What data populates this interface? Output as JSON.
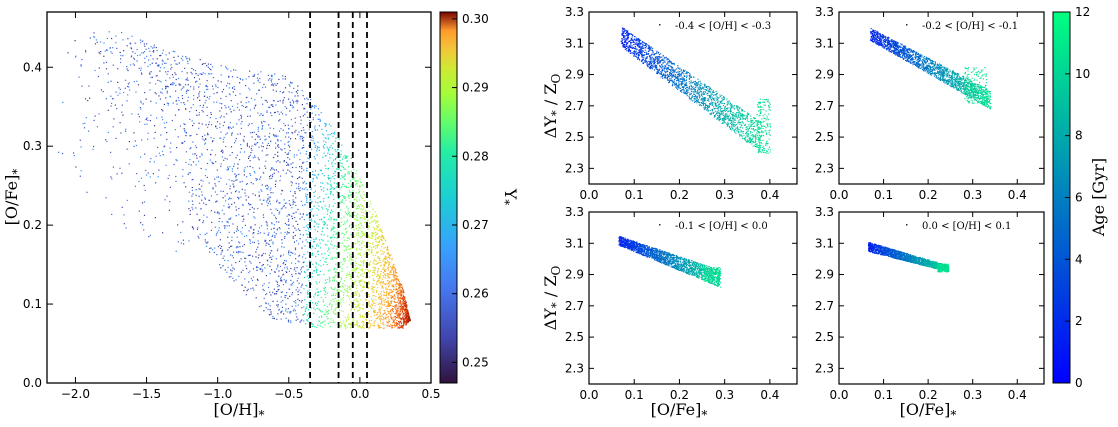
{
  "chart_data": [
    {
      "type": "scatter",
      "panel": "left",
      "xlabel": "[O/H]₁",
      "xlabel_text": "[O/H]",
      "xlabel_sub": "*",
      "ylabel_text": "[O/Fe]",
      "ylabel_sub": "*",
      "xlim": [
        -2.2,
        0.5
      ],
      "ylim": [
        0.0,
        0.47
      ],
      "xticks": [
        -2.0,
        -1.5,
        -1.0,
        -0.5,
        0.0,
        0.5
      ],
      "xtick_labels": [
        "−2.0",
        "−1.5",
        "−1.0",
        "−0.5",
        "0.0",
        "0.5"
      ],
      "yticks": [
        0.0,
        0.1,
        0.2,
        0.3,
        0.4
      ],
      "ytick_labels": [
        "0.0",
        "0.1",
        "0.2",
        "0.3",
        "0.4"
      ],
      "vlines": [
        -0.35,
        -0.15,
        -0.05,
        0.05
      ],
      "colorbar": {
        "label_text": "Y",
        "label_sub": "*",
        "range": [
          0.247,
          0.301
        ],
        "ticks": [
          0.25,
          0.26,
          0.27,
          0.28,
          0.29,
          0.3
        ],
        "tick_labels": [
          "0.25",
          "0.26",
          "0.27",
          "0.28",
          "0.29",
          "0.30"
        ],
        "colormap": "turbo"
      },
      "envelope": {
        "upper": [
          [
            -2.15,
            0.45
          ],
          [
            -1.75,
            0.45
          ],
          [
            -1.3,
            0.42
          ],
          [
            -0.9,
            0.4
          ],
          [
            -0.5,
            0.39
          ],
          [
            -0.3,
            0.35
          ],
          [
            -0.1,
            0.3
          ],
          [
            0.1,
            0.22
          ],
          [
            0.3,
            0.12
          ],
          [
            0.35,
            0.08
          ]
        ],
        "lower": [
          [
            -1.2,
            0.2
          ],
          [
            -1.0,
            0.15
          ],
          [
            -0.8,
            0.11
          ],
          [
            -0.6,
            0.08
          ],
          [
            -0.3,
            0.07
          ],
          [
            0.3,
            0.07
          ],
          [
            0.35,
            0.08
          ]
        ]
      }
    },
    {
      "type": "scatter",
      "panel": "top-left",
      "legend": "-0.4 < [O/H] < -0.3",
      "xlim": [
        0.0,
        0.46
      ],
      "ylim": [
        2.2,
        3.3
      ],
      "band": {
        "x": [
          0.07,
          0.38
        ],
        "y_top": [
          3.21,
          2.6
        ],
        "y_bot": [
          3.08,
          2.4
        ]
      },
      "tail": {
        "x": [
          0.37,
          0.4
        ],
        "y": [
          2.4,
          2.75
        ]
      }
    },
    {
      "type": "scatter",
      "panel": "top-right",
      "legend": "-0.2 < [O/H] < -0.1",
      "xlim": [
        0.0,
        0.46
      ],
      "ylim": [
        2.2,
        3.3
      ],
      "band": {
        "x": [
          0.07,
          0.34
        ],
        "y_top": [
          3.2,
          2.8
        ],
        "y_bot": [
          3.12,
          2.68
        ]
      },
      "tail": {
        "x": [
          0.28,
          0.33
        ],
        "y": [
          2.72,
          2.95
        ]
      }
    },
    {
      "type": "scatter",
      "panel": "bottom-left",
      "legend": "-0.1 < [O/H] < 0.0",
      "xlim": [
        0.0,
        0.46
      ],
      "ylim": [
        2.2,
        3.3
      ],
      "band": {
        "x": [
          0.065,
          0.29
        ],
        "y_top": [
          3.15,
          2.93
        ],
        "y_bot": [
          3.09,
          2.82
        ]
      },
      "tail": {
        "x": [
          0.25,
          0.29
        ],
        "y": [
          2.86,
          2.95
        ]
      }
    },
    {
      "type": "scatter",
      "panel": "bottom-right",
      "legend": "0.0 < [O/H] < 0.1",
      "xlim": [
        0.0,
        0.46
      ],
      "ylim": [
        2.2,
        3.3
      ],
      "band": {
        "x": [
          0.065,
          0.245
        ],
        "y_top": [
          3.11,
          2.96
        ],
        "y_bot": [
          3.05,
          2.92
        ]
      },
      "tail": {
        "x": [
          0.22,
          0.245
        ],
        "y": [
          2.92,
          2.97
        ]
      }
    }
  ],
  "grid_axes": {
    "xticks": [
      0.0,
      0.1,
      0.2,
      0.3,
      0.4
    ],
    "xtick_labels": [
      "0.0",
      "0.1",
      "0.2",
      "0.3",
      "0.4"
    ],
    "yticks": [
      2.3,
      2.5,
      2.7,
      2.9,
      3.1,
      3.3
    ],
    "ytick_labels": [
      "2.3",
      "2.5",
      "2.7",
      "2.9",
      "3.1",
      "3.3"
    ],
    "xlabel_text": "[O/Fe]",
    "xlabel_sub": "*",
    "ylabel_text": "ΔY",
    "ylabel_sub1": "*",
    "ylabel_mid": " / Z",
    "ylabel_sub2": "O"
  },
  "age_colorbar": {
    "label": "Age [Gyr]",
    "range": [
      0,
      12
    ],
    "ticks": [
      0,
      2,
      4,
      6,
      8,
      10,
      12
    ],
    "tick_labels": [
      "0",
      "2",
      "4",
      "6",
      "8",
      "10",
      "12"
    ],
    "colormap": "winter"
  }
}
